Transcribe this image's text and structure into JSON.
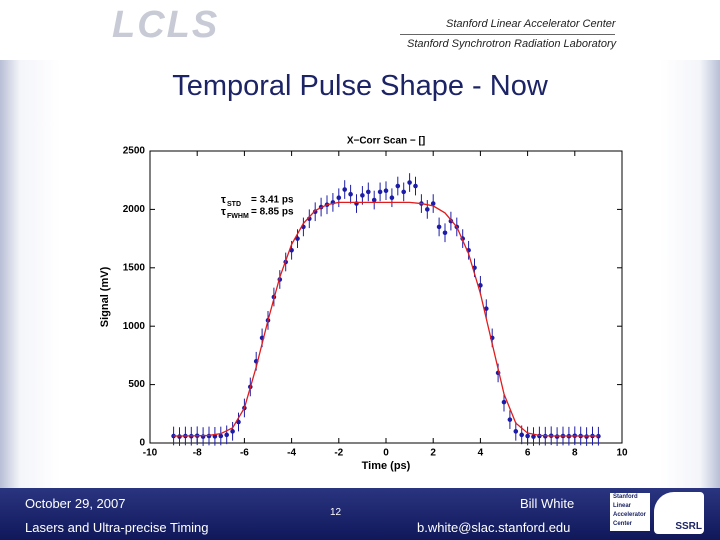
{
  "header": {
    "logo": "LCLS",
    "org1": "Stanford Linear Accelerator Center",
    "org2": "Stanford Synchrotron Radiation Laboratory"
  },
  "slide_title": "Temporal Pulse Shape - Now",
  "footer": {
    "date": "October 29, 2007",
    "event": "Lasers and Ultra-precise Timing",
    "page": "12",
    "author": "Bill White",
    "email": "b.white@slac.stanford.edu",
    "logo_lines": [
      "Stanford",
      "Linear",
      "Accelerator",
      "Center"
    ],
    "logo2": "SSRL"
  },
  "chart_data": {
    "type": "scatter",
    "title": "X−Corr Scan − []",
    "x_label": "Time (ps)",
    "y_label": "Signal (mV)",
    "xlim": [
      -10,
      10
    ],
    "xticks": [
      -10,
      -8,
      -6,
      -4,
      -2,
      0,
      2,
      4,
      6,
      8,
      10
    ],
    "ylim": [
      0,
      2500
    ],
    "yticks": [
      0,
      500,
      1000,
      1500,
      2000,
      2500
    ],
    "grid": false,
    "annotations": [
      {
        "symbol": "τ",
        "sub": "STD",
        "text": "= 3.41 ps"
      },
      {
        "symbol": "τ",
        "sub": "FWHM",
        "text": "= 8.85 ps"
      }
    ],
    "series": [
      {
        "type": "scatter",
        "color": "#1c1ca8",
        "error": 80,
        "x": [
          -9,
          -8.75,
          -8.5,
          -8.25,
          -8,
          -7.75,
          -7.5,
          -7.25,
          -7,
          -6.75,
          -6.5,
          -6.25,
          -6,
          -5.75,
          -5.5,
          -5.25,
          -5,
          -4.75,
          -4.5,
          -4.25,
          -4,
          -3.75,
          -3.5,
          -3.25,
          -3,
          -2.75,
          -2.5,
          -2.25,
          -2,
          -1.75,
          -1.5,
          -1.25,
          -1,
          -0.75,
          -0.5,
          -0.25,
          0,
          0.25,
          0.5,
          0.75,
          1,
          1.25,
          1.5,
          1.75,
          2,
          2.25,
          2.5,
          2.75,
          3,
          3.25,
          3.5,
          3.75,
          4,
          4.25,
          4.5,
          4.75,
          5,
          5.25,
          5.5,
          5.75,
          6,
          6.25,
          6.5,
          6.75,
          7,
          7.25,
          7.5,
          7.75,
          8,
          8.25,
          8.5,
          8.75,
          9
        ],
        "values": [
          60,
          55,
          60,
          58,
          62,
          55,
          60,
          57,
          60,
          70,
          100,
          180,
          300,
          480,
          700,
          900,
          1050,
          1250,
          1400,
          1550,
          1650,
          1750,
          1850,
          1920,
          1980,
          2020,
          2040,
          2060,
          2100,
          2170,
          2130,
          2050,
          2120,
          2150,
          2080,
          2150,
          2160,
          2100,
          2200,
          2150,
          2230,
          2200,
          2050,
          2000,
          2050,
          1850,
          1800,
          1900,
          1850,
          1750,
          1650,
          1500,
          1350,
          1150,
          900,
          600,
          350,
          200,
          100,
          70,
          60,
          55,
          60,
          58,
          62,
          55,
          60,
          58,
          62,
          60,
          55,
          60,
          58
        ]
      },
      {
        "type": "line",
        "color": "#e01c1c",
        "x": [
          -9,
          -8.5,
          -8,
          -7.5,
          -7,
          -6.5,
          -6,
          -5.5,
          -5,
          -4.5,
          -4,
          -3.5,
          -3,
          -2.5,
          -2,
          -1.5,
          -1,
          -0.5,
          0,
          0.5,
          1,
          1.5,
          2,
          2.5,
          3,
          3.5,
          4,
          4.5,
          5,
          5.5,
          6,
          6.5,
          7,
          7.5,
          8,
          8.5,
          9
        ],
        "values": [
          60,
          60,
          62,
          65,
          80,
          130,
          300,
          650,
          1050,
          1420,
          1700,
          1880,
          1990,
          2040,
          2060,
          2060,
          2060,
          2060,
          2060,
          2060,
          2060,
          2050,
          2030,
          1970,
          1850,
          1620,
          1280,
          850,
          420,
          170,
          85,
          65,
          60,
          60,
          60,
          60,
          60
        ]
      }
    ]
  }
}
